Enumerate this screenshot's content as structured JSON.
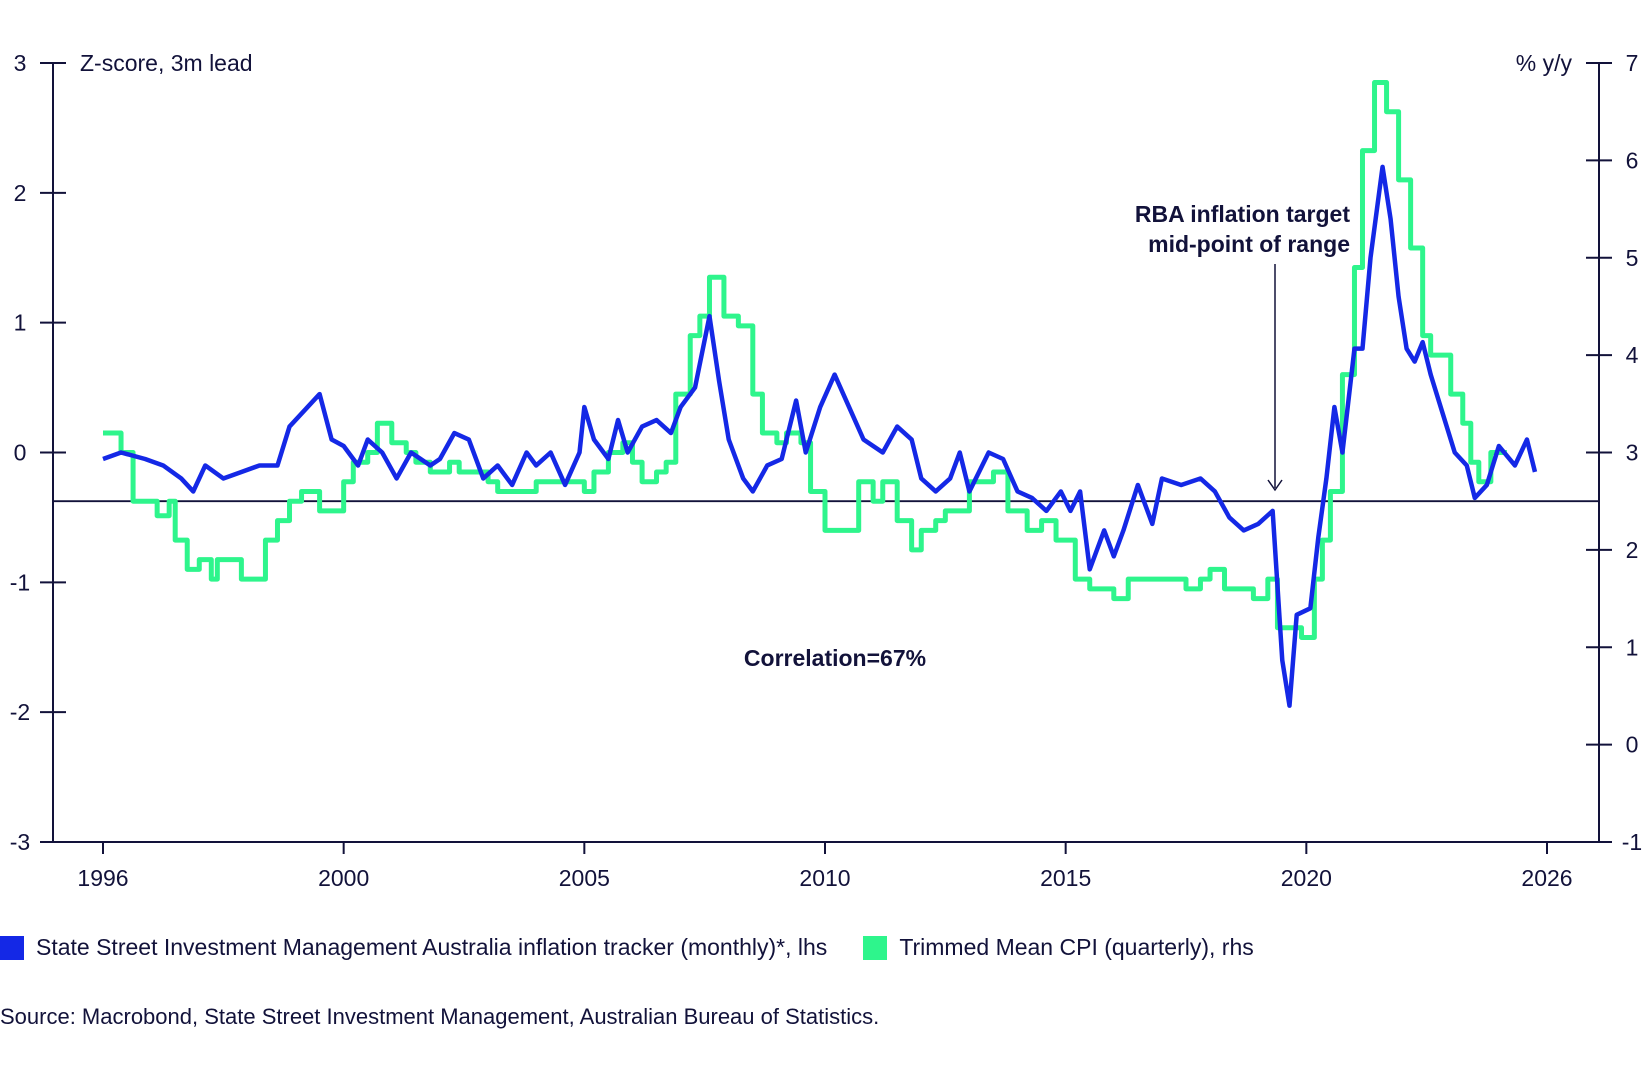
{
  "chart_data": {
    "type": "line",
    "left_axis": {
      "label": "Z-score, 3m lead",
      "ylim": [
        -3,
        3
      ],
      "ticks": [
        -3,
        -2,
        -1,
        0,
        1,
        2,
        3
      ],
      "tick_labels": [
        "-3",
        "-2",
        "-1",
        "0",
        "1",
        "2",
        "3"
      ]
    },
    "right_axis": {
      "label": "% y/y",
      "ylim": [
        -1,
        7
      ],
      "ticks": [
        -1,
        0,
        1,
        2,
        3,
        4,
        5,
        6,
        7
      ],
      "tick_labels": [
        "-1",
        "0",
        "1",
        "2",
        "3",
        "4",
        "5",
        "6",
        "7"
      ]
    },
    "x_ticks": [
      1996,
      2000,
      2005,
      2010,
      2015,
      2020,
      2026
    ],
    "x_tick_labels": [
      "1996",
      "2000",
      "2005",
      "2010",
      "2015",
      "2020",
      "2026"
    ],
    "grid": false,
    "reference_line": {
      "axis": "right",
      "value": 2.5
    },
    "annotations": {
      "target_line1": "RBA inflation target",
      "target_line2": "mid-point of range",
      "correlation": "Correlation=67%"
    },
    "series": [
      {
        "name": "State Street Investment Management Australia inflation tracker (monthly)*, lhs",
        "axis": "left",
        "color": "#1428e6",
        "style": "line",
        "x": [
          1996.0,
          1996.3,
          1996.7,
          1997.0,
          1997.3,
          1997.5,
          1997.7,
          1998.0,
          1998.3,
          1998.6,
          1998.9,
          1999.1,
          1999.4,
          1999.6,
          1999.8,
          2000.0,
          2000.3,
          2000.5,
          2000.8,
          2001.1,
          2001.4,
          2001.8,
          2002.0,
          2002.3,
          2002.6,
          2002.9,
          2003.2,
          2003.5,
          2003.8,
          2004.0,
          2004.3,
          2004.6,
          2004.9,
          2005.0,
          2005.2,
          2005.5,
          2005.7,
          2005.9,
          2006.2,
          2006.5,
          2006.8,
          2007.0,
          2007.3,
          2007.6,
          2007.8,
          2008.0,
          2008.3,
          2008.5,
          2008.8,
          2009.1,
          2009.4,
          2009.6,
          2009.9,
          2010.2,
          2010.5,
          2010.8,
          2011.2,
          2011.5,
          2011.8,
          2012.0,
          2012.3,
          2012.6,
          2012.8,
          2013.0,
          2013.4,
          2013.7,
          2014.0,
          2014.3,
          2014.6,
          2014.9,
          2015.1,
          2015.3,
          2015.5,
          2015.8,
          2016.0,
          2016.2,
          2016.5,
          2016.8,
          2017.0,
          2017.4,
          2017.8,
          2018.1,
          2018.4,
          2018.7,
          2019.0,
          2019.3,
          2019.5,
          2019.65,
          2019.8,
          2020.1,
          2020.3,
          2020.5,
          2020.7,
          2020.9,
          2021.2,
          2021.4,
          2021.6,
          2021.9,
          2022.1,
          2022.3,
          2022.5,
          2022.7,
          2022.9,
          2023.1,
          2023.4,
          2023.7,
          2024.0,
          2024.2,
          2024.5,
          2024.8,
          2025.2,
          2025.5,
          2025.7
        ],
        "y": [
          -0.05,
          0.0,
          -0.05,
          -0.1,
          -0.2,
          -0.3,
          -0.1,
          -0.2,
          -0.15,
          -0.1,
          -0.1,
          0.2,
          0.35,
          0.45,
          0.1,
          0.05,
          -0.1,
          0.1,
          0.0,
          -0.2,
          0.0,
          -0.1,
          -0.05,
          0.15,
          0.1,
          -0.2,
          -0.1,
          -0.25,
          0.0,
          -0.1,
          0.0,
          -0.25,
          0.0,
          0.35,
          0.1,
          -0.05,
          0.25,
          0.0,
          0.2,
          0.25,
          0.15,
          0.35,
          0.5,
          1.05,
          0.55,
          0.1,
          -0.2,
          -0.3,
          -0.1,
          -0.05,
          0.4,
          0.0,
          0.35,
          0.6,
          0.35,
          0.1,
          0.0,
          0.2,
          0.1,
          -0.2,
          -0.3,
          -0.2,
          0.0,
          -0.3,
          0.0,
          -0.05,
          -0.3,
          -0.35,
          -0.45,
          -0.3,
          -0.45,
          -0.3,
          -0.9,
          -0.6,
          -0.8,
          -0.6,
          -0.25,
          -0.55,
          -0.2,
          -0.25,
          -0.2,
          -0.3,
          -0.5,
          -0.6,
          -0.55,
          -0.45,
          -1.6,
          -1.95,
          -1.25,
          -1.2,
          -0.65,
          -0.2,
          0.35,
          0.0,
          0.8,
          0.8,
          1.5,
          2.2,
          1.8,
          1.2,
          0.8,
          0.7,
          0.85,
          0.6,
          0.3,
          0.0,
          -0.1,
          -0.35,
          -0.25,
          0.05,
          -0.1,
          0.1,
          -0.15
        ]
      },
      {
        "name": "Trimmed Mean CPI (quarterly), rhs",
        "axis": "right",
        "color": "#2ef58c",
        "style": "step",
        "x": [
          1996.0,
          1996.3,
          1996.5,
          1996.9,
          1997.1,
          1997.2,
          1997.4,
          1997.6,
          1997.8,
          1997.9,
          1998.3,
          1998.7,
          1998.9,
          1999.1,
          1999.3,
          1999.6,
          2000.0,
          2000.2,
          2000.5,
          2000.7,
          2001.0,
          2001.3,
          2001.5,
          2001.8,
          2002.2,
          2002.4,
          2003.0,
          2003.2,
          2004.0,
          2005.0,
          2005.2,
          2005.5,
          2005.8,
          2006.0,
          2006.2,
          2006.5,
          2006.7,
          2006.9,
          2007.2,
          2007.4,
          2007.6,
          2007.9,
          2008.2,
          2008.5,
          2008.7,
          2009.0,
          2009.2,
          2009.5,
          2009.7,
          2010.0,
          2010.7,
          2011.0,
          2011.2,
          2011.5,
          2011.8,
          2012.0,
          2012.3,
          2012.5,
          2013.0,
          2013.5,
          2013.8,
          2014.2,
          2014.5,
          2014.8,
          2015.2,
          2015.5,
          2016.0,
          2016.3,
          2017.5,
          2017.8,
          2018.0,
          2018.3,
          2018.9,
          2019.2,
          2019.4,
          2019.9,
          2020.2,
          2020.4,
          2020.6,
          2020.9,
          2021.2,
          2021.4,
          2021.7,
          2022.0,
          2022.3,
          2022.6,
          2022.9,
          2023.1,
          2023.6,
          2023.9,
          2024.1,
          2024.3,
          2024.6,
          2025.0
        ],
        "y": [
          3.2,
          3.0,
          2.5,
          2.35,
          2.5,
          2.1,
          1.8,
          1.9,
          1.7,
          1.9,
          1.7,
          2.1,
          2.3,
          2.5,
          2.6,
          2.4,
          2.7,
          2.9,
          3.0,
          3.3,
          3.1,
          3.0,
          2.9,
          2.8,
          2.9,
          2.8,
          2.7,
          2.6,
          2.7,
          2.6,
          2.8,
          3.0,
          3.1,
          2.9,
          2.7,
          2.8,
          2.9,
          3.6,
          4.2,
          4.4,
          4.8,
          4.4,
          4.3,
          3.6,
          3.2,
          3.1,
          3.2,
          3.1,
          2.6,
          2.2,
          2.7,
          2.5,
          2.7,
          2.3,
          2.0,
          2.2,
          2.3,
          2.4,
          2.7,
          2.8,
          2.4,
          2.2,
          2.3,
          2.1,
          1.7,
          1.6,
          1.5,
          1.7,
          1.6,
          1.7,
          1.8,
          1.6,
          1.5,
          1.7,
          1.2,
          1.1,
          1.7,
          2.1,
          2.6,
          3.8,
          4.9,
          6.1,
          6.8,
          6.5,
          5.8,
          5.1,
          4.2,
          4.0,
          3.6,
          3.3,
          2.9,
          2.7,
          3.0,
          3.0
        ]
      }
    ]
  },
  "legend": {
    "items": [
      {
        "label": "State Street Investment Management Australia inflation tracker (monthly)*, lhs",
        "color": "#1428e6"
      },
      {
        "label": "Trimmed Mean CPI (quarterly), rhs",
        "color": "#2ef58c"
      }
    ]
  },
  "source": "Source: Macrobond, State Street Investment Management, Australian Bureau of Statistics."
}
